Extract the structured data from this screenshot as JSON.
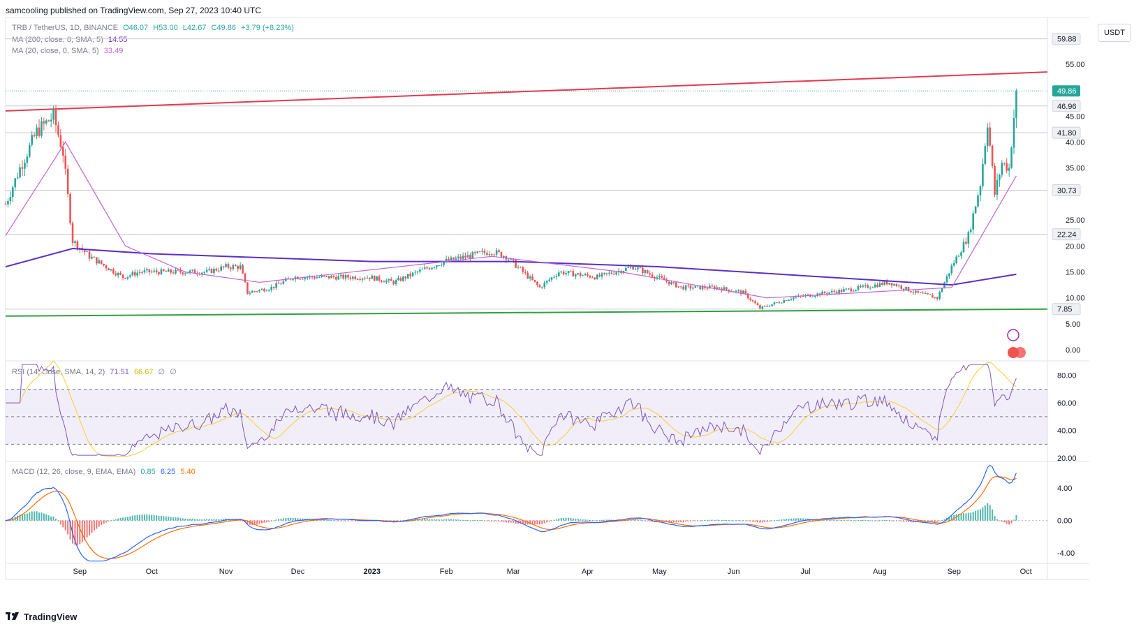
{
  "header": {
    "published": "samcooling published on TradingView.com, Sep 27, 2023 10:40 UTC"
  },
  "symbol_line": {
    "symbol": "TRB / TetherUS, 1D, BINANCE",
    "o": "O46.07",
    "h": "H53.00",
    "l": "L42.67",
    "c": "C49.86",
    "chg": "+3.79 (+8.23%)"
  },
  "indicators": {
    "ma200_label": "MA (200, close, 0, SMA, 5)",
    "ma200_value": "14.55",
    "ma20_label": "MA (20, close, 0, SMA, 5)",
    "ma20_value": "33.49",
    "rsi_label": "RSI (14, close, SMA, 14, 2)",
    "rsi_value": "71.51",
    "rsi_ma": "66.67",
    "rsi_extra1": "∅",
    "rsi_extra2": "∅",
    "macd_label": "MACD (12, 26, close, 9, EMA, EMA)",
    "macd_hist": "0.85",
    "macd_line": "6.25",
    "macd_signal": "5.40"
  },
  "currency_button": "USDT",
  "footer_brand": "TradingView",
  "colors": {
    "up": "#26a69a",
    "down": "#ef5350",
    "ma200": "#5b2fc9",
    "ma20": "#c065d1",
    "resistance": "#e53950",
    "support": "#2ea043",
    "rsi": "#7e57c2",
    "rsi_ma": "#f0d040",
    "macd": "#2962ff",
    "signal": "#ff6d00"
  },
  "chart_data": [
    {
      "type": "candlestick",
      "title": "TRB / TetherUS, 1D, BINANCE",
      "y_axis_ticks": [
        "55.00",
        "45.00",
        "40.00",
        "35.00",
        "25.00",
        "20.00",
        "15.00",
        "10.00",
        "5.00",
        "0.00"
      ],
      "price_labels": [
        "59.88",
        "49.86",
        "46.96",
        "41.80",
        "30.73",
        "22.24",
        "7.85"
      ],
      "ylim": [
        -2,
        64
      ],
      "x_axis_ticks": [
        "Sep",
        "Oct",
        "Nov",
        "Dec",
        "2023",
        "Feb",
        "Mar",
        "Apr",
        "May",
        "Jun",
        "Jul",
        "Aug",
        "Sep",
        "Oct"
      ],
      "price_path": [
        [
          "2022-08-01",
          28
        ],
        [
          "2022-08-07",
          35
        ],
        [
          "2022-08-14",
          42
        ],
        [
          "2022-08-21",
          45
        ],
        [
          "2022-08-25",
          38
        ],
        [
          "2022-08-29",
          21
        ],
        [
          "2022-09-05",
          18
        ],
        [
          "2022-09-12",
          16
        ],
        [
          "2022-09-19",
          14
        ],
        [
          "2022-09-26",
          15
        ],
        [
          "2022-10-10",
          15
        ],
        [
          "2022-10-24",
          15
        ],
        [
          "2022-11-01",
          16
        ],
        [
          "2022-11-07",
          16
        ],
        [
          "2022-11-10",
          11
        ],
        [
          "2022-11-20",
          12
        ],
        [
          "2022-11-29",
          14
        ],
        [
          "2022-12-15",
          14
        ],
        [
          "2022-12-31",
          14
        ],
        [
          "2023-01-10",
          13
        ],
        [
          "2023-01-20",
          15
        ],
        [
          "2023-01-31",
          17
        ],
        [
          "2023-02-10",
          18
        ],
        [
          "2023-02-20",
          19
        ],
        [
          "2023-02-26",
          18
        ],
        [
          "2023-03-05",
          15
        ],
        [
          "2023-03-12",
          12
        ],
        [
          "2023-03-20",
          15
        ],
        [
          "2023-04-05",
          14
        ],
        [
          "2023-04-20",
          16
        ],
        [
          "2023-04-30",
          14
        ],
        [
          "2023-05-10",
          12
        ],
        [
          "2023-05-25",
          12
        ],
        [
          "2023-06-05",
          11
        ],
        [
          "2023-06-12",
          8
        ],
        [
          "2023-06-25",
          10
        ],
        [
          "2023-07-10",
          11
        ],
        [
          "2023-07-25",
          12
        ],
        [
          "2023-08-05",
          13
        ],
        [
          "2023-08-16",
          11
        ],
        [
          "2023-08-25",
          10
        ],
        [
          "2023-08-31",
          16
        ],
        [
          "2023-09-07",
          22
        ],
        [
          "2023-09-12",
          32
        ],
        [
          "2023-09-15",
          44
        ],
        [
          "2023-09-18",
          30
        ],
        [
          "2023-09-21",
          36
        ],
        [
          "2023-09-24",
          35
        ],
        [
          "2023-09-27",
          49.86
        ]
      ],
      "series": [
        {
          "name": "MA (200, close, 0, SMA, 5)",
          "points": [
            [
              "2022-08-01",
              16
            ],
            [
              "2022-08-29",
              19.5
            ],
            [
              "2022-10-01",
              18.5
            ],
            [
              "2023-01-01",
              17
            ],
            [
              "2023-03-01",
              17
            ],
            [
              "2023-05-01",
              16
            ],
            [
              "2023-08-31",
              12.5
            ],
            [
              "2023-09-27",
              14.55
            ]
          ]
        },
        {
          "name": "MA (20, close, 0, SMA, 5)",
          "points": [
            [
              "2022-08-01",
              22
            ],
            [
              "2022-08-26",
              40
            ],
            [
              "2022-09-20",
              20
            ],
            [
              "2022-10-15",
              15
            ],
            [
              "2022-11-15",
              13
            ],
            [
              "2023-02-20",
              18
            ],
            [
              "2023-04-15",
              15
            ],
            [
              "2023-06-15",
              10
            ],
            [
              "2023-08-31",
              12
            ],
            [
              "2023-09-27",
              33.49
            ]
          ]
        }
      ],
      "annotations": {
        "resistance_line": [
          [
            "2022-08-01",
            46
          ],
          [
            "2023-10-10",
            53.5
          ]
        ],
        "support_line": [
          [
            "2022-08-01",
            6.5
          ],
          [
            "2023-10-10",
            7.85
          ]
        ]
      }
    },
    {
      "type": "line",
      "title": "RSI (14, close, SMA, 14, 2)",
      "y_axis_ticks": [
        "80.00",
        "60.00",
        "40.00",
        "20.00"
      ],
      "bands": [
        30,
        50,
        70
      ],
      "ylim": [
        18,
        90
      ]
    },
    {
      "type": "line",
      "title": "MACD (12, 26, close, 9, EMA, EMA)",
      "y_axis_ticks": [
        "4.00",
        "0.00",
        "-4.00"
      ],
      "ylim": [
        -5.2,
        7.2
      ]
    }
  ]
}
